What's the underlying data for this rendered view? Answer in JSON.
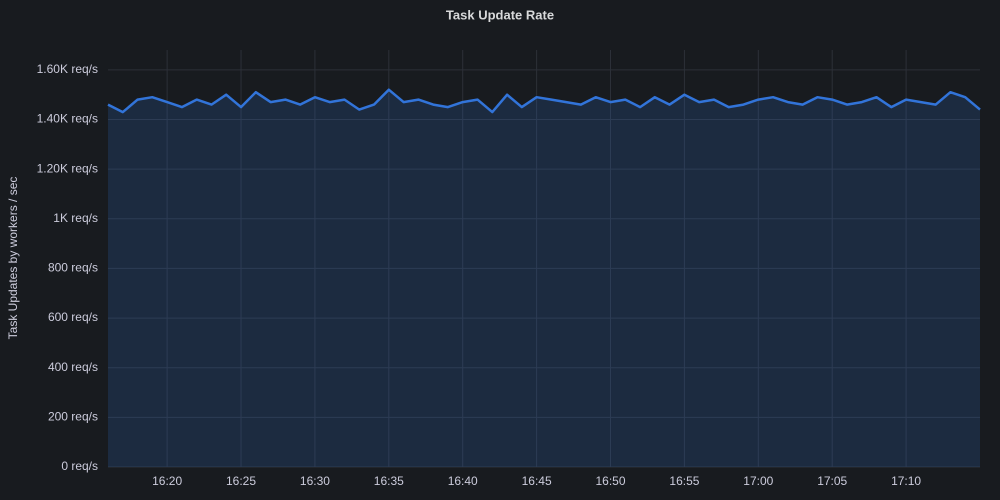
{
  "chart_data": {
    "type": "line",
    "title": "Task Update Rate",
    "y_label": "Task Updates by workers / sec",
    "x": [
      "16:16",
      "16:17",
      "16:18",
      "16:19",
      "16:20",
      "16:21",
      "16:22",
      "16:23",
      "16:24",
      "16:25",
      "16:26",
      "16:27",
      "16:28",
      "16:29",
      "16:30",
      "16:31",
      "16:32",
      "16:33",
      "16:34",
      "16:35",
      "16:36",
      "16:37",
      "16:38",
      "16:39",
      "16:40",
      "16:41",
      "16:42",
      "16:43",
      "16:44",
      "16:45",
      "16:46",
      "16:47",
      "16:48",
      "16:49",
      "16:50",
      "16:51",
      "16:52",
      "16:53",
      "16:54",
      "16:55",
      "16:56",
      "16:57",
      "16:58",
      "16:59",
      "17:00",
      "17:01",
      "17:02",
      "17:03",
      "17:04",
      "17:05",
      "17:06",
      "17:07",
      "17:08",
      "17:09",
      "17:10",
      "17:11",
      "17:12",
      "17:13",
      "17:14",
      "17:15"
    ],
    "series": [
      {
        "color": "#3274d9",
        "values": [
          1460,
          1430,
          1480,
          1490,
          1470,
          1450,
          1480,
          1460,
          1500,
          1450,
          1510,
          1470,
          1480,
          1460,
          1490,
          1470,
          1480,
          1440,
          1460,
          1520,
          1470,
          1480,
          1460,
          1450,
          1470,
          1480,
          1430,
          1500,
          1450,
          1490,
          1480,
          1470,
          1460,
          1490,
          1470,
          1480,
          1450,
          1490,
          1460,
          1500,
          1470,
          1480,
          1450,
          1460,
          1480,
          1490,
          1470,
          1460,
          1490,
          1480,
          1460,
          1470,
          1490,
          1450,
          1480,
          1470,
          1460,
          1510,
          1490,
          1440
        ]
      }
    ],
    "xlim": [
      "16:16",
      "17:15"
    ],
    "xticks": [
      "16:20",
      "16:25",
      "16:30",
      "16:35",
      "16:40",
      "16:45",
      "16:50",
      "16:55",
      "17:00",
      "17:05",
      "17:10"
    ],
    "ylim": [
      0,
      1680
    ],
    "yticks": [
      {
        "value": 0,
        "label": "0 req/s"
      },
      {
        "value": 200,
        "label": "200 req/s"
      },
      {
        "value": 400,
        "label": "400 req/s"
      },
      {
        "value": 600,
        "label": "600 req/s"
      },
      {
        "value": 800,
        "label": "800 req/s"
      },
      {
        "value": 1000,
        "label": "1K req/s"
      },
      {
        "value": 1200,
        "label": "1.20K req/s"
      },
      {
        "value": 1400,
        "label": "1.40K req/s"
      },
      {
        "value": 1600,
        "label": "1.60K req/s"
      }
    ],
    "grid": true
  }
}
